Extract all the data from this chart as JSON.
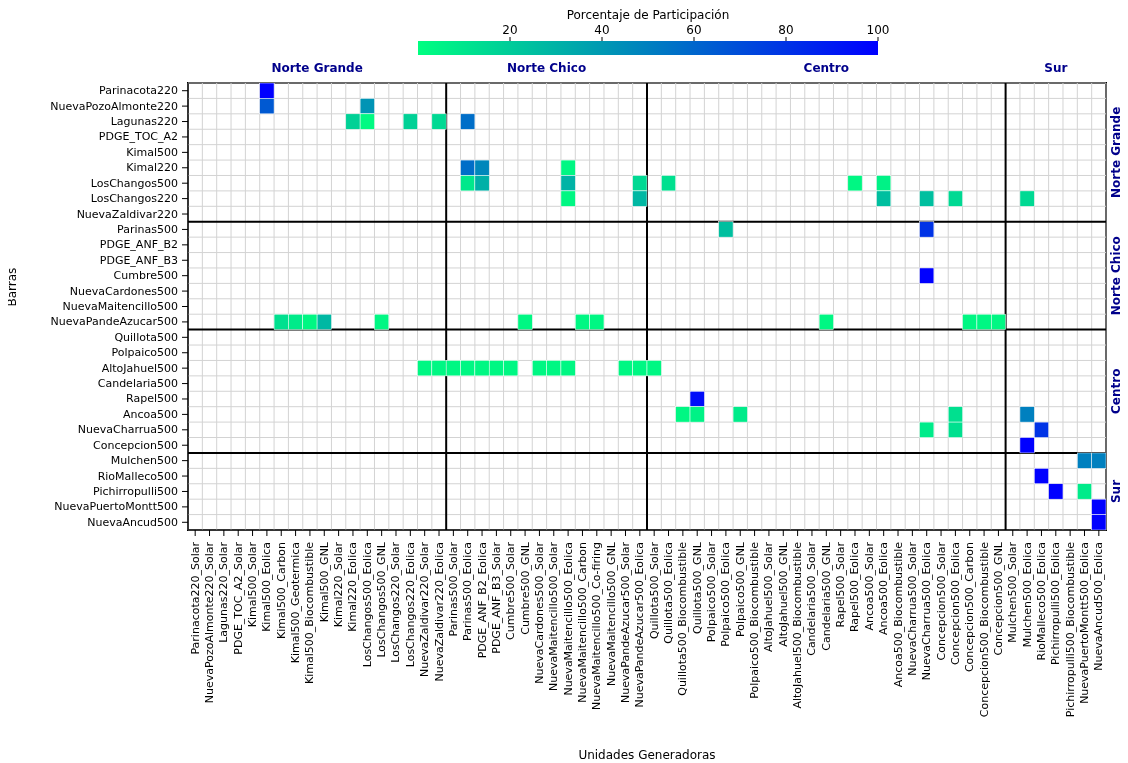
{
  "chart_data": {
    "type": "heatmap",
    "xlabel": "Unidades Generadoras",
    "ylabel": "Barras",
    "clabel": "Porcentaje de Participación",
    "clim": [
      0,
      100
    ],
    "cticks": [
      20,
      40,
      60,
      80,
      100
    ],
    "grid": true,
    "categories": [
      "Parinacota220_Solar",
      "NuevaPozoAlmonte220_Solar",
      "Lagunas220_Solar",
      "PDGE_TOC_A2_Solar",
      "Kimal500_Solar",
      "Kimal500_Eolica",
      "Kimal500_Carbon",
      "Kimal500_Geotermica",
      "Kimal500_Biocombustible",
      "Kimal500_GNL",
      "Kimal220_Solar",
      "Kimal220_Eolica",
      "LosChangos500_Eolica",
      "LosChangos500_GNL",
      "LosChangos220_Solar",
      "LosChangos220_Eolica",
      "NuevaZaldivar220_Solar",
      "NuevaZaldivar220_Eolica",
      "Parinas500_Solar",
      "Parinas500_Eolica",
      "PDGE_ANF_B2_Eolica",
      "PDGE_ANF_B3_Solar",
      "Cumbre500_Solar",
      "Cumbre500_GNL",
      "NuevaCardones500_Solar",
      "NuevaMaitencillo500_Solar",
      "NuevaMaitencillo500_Eolica",
      "NuevaMaitencillo500_Carbon",
      "NuevaMaitencillo500_Co-firing",
      "NuevaMaitencillo500_GNL",
      "NuevaPandeAzucar500_Solar",
      "NuevaPandeAzucar500_Eolica",
      "Quillota500_Solar",
      "Quillota500_Eolica",
      "Quillota500_Biocombustible",
      "Quillota500_GNL",
      "Polpaico500_Solar",
      "Polpaico500_Eolica",
      "Polpaico500_GNL",
      "Polpaico500_Biocombustible",
      "AltoJahuel500_Solar",
      "AltoJahuel500_GNL",
      "AltoJahuel500_Biocombustible",
      "Candelaria500_Solar",
      "Candelaria500_GNL",
      "Rapel500_Solar",
      "Rapel500_Eolica",
      "Ancoa500_Solar",
      "Ancoa500_Eolica",
      "Ancoa500_Biocombustible",
      "NuevaCharrua500_Solar",
      "NuevaCharrua500_Eolica",
      "Concepcion500_Solar",
      "Concepcion500_Eolica",
      "Concepcion500_Carbon",
      "Concepcion500_Biocombustible",
      "Concepcion500_GNL",
      "Mulchen500_Solar",
      "Mulchen500_Eolica",
      "RioMalleco500_Eolica",
      "Pichirropulli500_Eolica",
      "Pichirropulli500_Biocombustible",
      "NuevaPuertoMontt500_Eolica",
      "NuevaAncud500_Eolica"
    ],
    "y_categories": [
      "Parinacota220",
      "NuevaPozoAlmonte220",
      "Lagunas220",
      "PDGE_TOC_A2",
      "Kimal500",
      "Kimal220",
      "LosChangos500",
      "LosChangos220",
      "NuevaZaldivar220",
      "Parinas500",
      "PDGE_ANF_B2",
      "PDGE_ANF_B3",
      "Cumbre500",
      "NuevaCardones500",
      "NuevaMaitencillo500",
      "NuevaPandeAzucar500",
      "Quillota500",
      "Polpaico500",
      "AltoJahuel500",
      "Candelaria500",
      "Rapel500",
      "Ancoa500",
      "NuevaCharrua500",
      "Concepcion500",
      "Mulchen500",
      "RioMalleco500",
      "Pichirropulli500",
      "NuevaPuertoMontt500",
      "NuevaAncud500"
    ],
    "cells": [
      [
        null,
        null,
        null,
        null,
        null,
        100,
        null,
        null,
        null,
        null,
        null,
        null,
        null,
        null,
        null,
        null,
        null,
        null,
        null,
        null,
        null,
        null,
        null,
        null,
        null,
        null,
        null,
        null,
        null,
        null,
        null,
        null,
        null,
        null,
        null,
        null,
        null,
        null,
        null,
        null,
        null,
        null,
        null,
        null,
        null,
        null,
        null,
        null,
        null,
        null,
        null,
        null,
        null,
        null,
        null,
        null,
        null,
        null,
        null,
        null,
        null,
        null,
        null,
        null
      ],
      [
        null,
        null,
        null,
        null,
        null,
        65,
        null,
        null,
        null,
        null,
        null,
        null,
        42,
        null,
        null,
        null,
        null,
        null,
        null,
        null,
        null,
        null,
        null,
        null,
        null,
        null,
        null,
        null,
        null,
        null,
        null,
        null,
        null,
        null,
        null,
        null,
        null,
        null,
        null,
        null,
        null,
        null,
        null,
        null,
        null,
        null,
        null,
        null,
        null,
        null,
        null,
        null,
        null,
        null,
        null,
        null,
        null,
        null,
        null,
        null,
        null,
        null,
        null,
        null
      ],
      [
        null,
        null,
        null,
        null,
        null,
        null,
        null,
        null,
        null,
        null,
        null,
        18,
        2,
        null,
        null,
        18,
        null,
        15,
        null,
        57,
        null,
        null,
        null,
        null,
        null,
        null,
        null,
        null,
        null,
        null,
        null,
        null,
        null,
        null,
        null,
        null,
        null,
        null,
        null,
        null,
        null,
        null,
        null,
        null,
        null,
        null,
        null,
        null,
        null,
        null,
        null,
        null,
        null,
        null,
        null,
        null,
        null,
        null,
        null,
        null,
        null,
        null,
        null,
        null
      ],
      [
        null,
        null,
        null,
        null,
        null,
        null,
        null,
        null,
        null,
        null,
        null,
        null,
        null,
        null,
        null,
        null,
        null,
        null,
        null,
        null,
        null,
        null,
        null,
        null,
        null,
        null,
        null,
        null,
        null,
        null,
        null,
        null,
        null,
        null,
        null,
        null,
        null,
        null,
        null,
        null,
        null,
        null,
        null,
        null,
        null,
        null,
        null,
        null,
        null,
        null,
        null,
        null,
        null,
        null,
        null,
        null,
        null,
        null,
        null,
        null,
        null,
        null,
        null,
        null
      ],
      [
        null,
        null,
        null,
        null,
        null,
        null,
        null,
        null,
        null,
        null,
        null,
        null,
        null,
        null,
        null,
        null,
        null,
        null,
        null,
        null,
        null,
        null,
        null,
        null,
        null,
        null,
        null,
        null,
        null,
        null,
        null,
        null,
        null,
        null,
        null,
        null,
        null,
        null,
        null,
        null,
        null,
        null,
        null,
        null,
        null,
        null,
        null,
        null,
        null,
        null,
        null,
        null,
        null,
        null,
        null,
        null,
        null,
        null,
        null,
        null,
        null,
        null,
        null,
        null
      ],
      [
        null,
        null,
        null,
        null,
        null,
        null,
        null,
        null,
        null,
        null,
        null,
        null,
        null,
        null,
        null,
        null,
        null,
        null,
        null,
        57,
        47,
        null,
        null,
        null,
        null,
        null,
        3,
        null,
        null,
        null,
        null,
        null,
        null,
        null,
        null,
        null,
        null,
        null,
        null,
        null,
        null,
        null,
        null,
        null,
        null,
        null,
        null,
        null,
        null,
        null,
        null,
        null,
        null,
        null,
        null,
        null,
        null,
        null,
        null,
        null,
        null,
        null,
        null,
        null
      ],
      [
        null,
        null,
        null,
        null,
        null,
        null,
        null,
        null,
        null,
        null,
        null,
        null,
        null,
        null,
        null,
        null,
        null,
        null,
        null,
        9,
        31,
        null,
        null,
        null,
        null,
        null,
        30,
        null,
        null,
        null,
        null,
        15,
        null,
        12,
        null,
        null,
        null,
        null,
        null,
        null,
        null,
        null,
        null,
        null,
        null,
        null,
        3,
        null,
        5,
        null,
        null,
        null,
        null,
        null,
        null,
        null,
        null,
        null,
        null,
        null,
        null,
        null,
        null,
        null
      ],
      [
        null,
        null,
        null,
        null,
        null,
        null,
        null,
        null,
        null,
        null,
        null,
        null,
        null,
        null,
        null,
        null,
        null,
        null,
        null,
        null,
        null,
        null,
        null,
        null,
        null,
        null,
        3,
        null,
        null,
        null,
        null,
        28,
        null,
        null,
        null,
        null,
        null,
        null,
        null,
        null,
        null,
        null,
        null,
        null,
        null,
        null,
        null,
        null,
        25,
        null,
        null,
        25,
        null,
        15,
        null,
        null,
        null,
        null,
        15,
        null,
        null,
        null,
        null,
        null
      ],
      [
        null,
        null,
        null,
        null,
        null,
        null,
        null,
        null,
        null,
        null,
        null,
        null,
        null,
        null,
        null,
        null,
        null,
        null,
        null,
        null,
        null,
        null,
        null,
        null,
        null,
        null,
        null,
        null,
        null,
        null,
        null,
        null,
        null,
        null,
        null,
        null,
        null,
        null,
        null,
        null,
        null,
        null,
        null,
        null,
        null,
        null,
        null,
        null,
        null,
        null,
        null,
        null,
        null,
        null,
        null,
        null,
        null,
        null,
        null,
        null,
        null,
        null,
        null,
        null
      ],
      [
        null,
        null,
        null,
        null,
        null,
        null,
        null,
        null,
        null,
        null,
        null,
        null,
        null,
        null,
        null,
        null,
        null,
        null,
        null,
        null,
        null,
        null,
        null,
        null,
        null,
        null,
        null,
        null,
        null,
        null,
        null,
        null,
        null,
        null,
        null,
        null,
        null,
        25,
        null,
        null,
        null,
        null,
        null,
        null,
        null,
        null,
        null,
        null,
        null,
        null,
        null,
        80,
        null,
        null,
        null,
        null,
        null,
        null,
        null,
        null,
        null,
        null,
        null,
        null
      ],
      [
        null,
        null,
        null,
        null,
        null,
        null,
        null,
        null,
        null,
        null,
        null,
        null,
        null,
        null,
        null,
        null,
        null,
        null,
        null,
        null,
        null,
        null,
        null,
        null,
        null,
        null,
        null,
        null,
        null,
        null,
        null,
        null,
        null,
        null,
        null,
        null,
        null,
        null,
        null,
        null,
        null,
        null,
        null,
        null,
        null,
        null,
        null,
        null,
        null,
        null,
        null,
        null,
        null,
        null,
        null,
        null,
        null,
        null,
        null,
        null,
        null,
        null,
        null,
        null
      ],
      [
        null,
        null,
        null,
        null,
        null,
        null,
        null,
        null,
        null,
        null,
        null,
        null,
        null,
        null,
        null,
        null,
        null,
        null,
        null,
        null,
        null,
        null,
        null,
        null,
        null,
        null,
        null,
        null,
        null,
        null,
        null,
        null,
        null,
        null,
        null,
        null,
        null,
        null,
        null,
        null,
        null,
        null,
        null,
        null,
        null,
        null,
        null,
        null,
        null,
        null,
        null,
        null,
        null,
        null,
        null,
        null,
        null,
        null,
        null,
        null,
        null,
        null,
        null,
        null
      ],
      [
        null,
        null,
        null,
        null,
        null,
        null,
        null,
        null,
        null,
        null,
        null,
        null,
        null,
        null,
        null,
        null,
        null,
        null,
        null,
        null,
        null,
        null,
        null,
        null,
        null,
        null,
        null,
        null,
        null,
        null,
        null,
        null,
        null,
        null,
        null,
        null,
        null,
        null,
        null,
        null,
        null,
        null,
        null,
        null,
        null,
        null,
        null,
        null,
        null,
        null,
        null,
        100,
        null,
        null,
        null,
        null,
        null,
        null,
        null,
        null,
        null,
        null,
        null,
        null
      ],
      [
        null,
        null,
        null,
        null,
        null,
        null,
        null,
        null,
        null,
        null,
        null,
        null,
        null,
        null,
        null,
        null,
        null,
        null,
        null,
        null,
        null,
        null,
        null,
        null,
        null,
        null,
        null,
        null,
        null,
        null,
        null,
        null,
        null,
        null,
        null,
        null,
        null,
        null,
        null,
        null,
        null,
        null,
        null,
        null,
        null,
        null,
        null,
        null,
        null,
        null,
        null,
        null,
        null,
        null,
        null,
        null,
        null,
        null,
        null,
        null,
        null,
        null,
        null,
        null
      ],
      [
        null,
        null,
        null,
        null,
        null,
        null,
        null,
        null,
        null,
        null,
        null,
        null,
        null,
        null,
        null,
        null,
        null,
        null,
        null,
        null,
        null,
        null,
        null,
        null,
        null,
        null,
        null,
        null,
        null,
        null,
        null,
        null,
        null,
        null,
        null,
        null,
        null,
        null,
        null,
        null,
        null,
        null,
        null,
        null,
        null,
        null,
        null,
        null,
        null,
        null,
        null,
        null,
        null,
        null,
        null,
        null,
        null,
        null,
        null,
        null,
        null,
        null,
        null,
        null
      ],
      [
        null,
        null,
        null,
        null,
        null,
        null,
        12,
        8,
        3,
        28,
        null,
        null,
        null,
        3,
        null,
        null,
        null,
        null,
        null,
        null,
        null,
        null,
        null,
        3,
        null,
        null,
        null,
        3,
        3,
        null,
        null,
        null,
        null,
        null,
        null,
        null,
        null,
        null,
        null,
        null,
        null,
        null,
        null,
        null,
        3,
        null,
        null,
        null,
        null,
        null,
        null,
        null,
        null,
        null,
        3,
        3,
        3,
        null,
        null,
        null,
        null,
        null,
        null,
        null
      ],
      [
        null,
        null,
        null,
        null,
        null,
        null,
        null,
        null,
        null,
        null,
        null,
        null,
        null,
        null,
        null,
        null,
        null,
        null,
        null,
        null,
        null,
        null,
        null,
        null,
        null,
        null,
        null,
        null,
        null,
        null,
        null,
        null,
        null,
        null,
        null,
        null,
        null,
        null,
        null,
        null,
        null,
        null,
        null,
        null,
        null,
        null,
        null,
        null,
        null,
        null,
        null,
        null,
        null,
        null,
        null,
        null,
        null,
        null,
        null,
        null,
        null,
        null,
        null,
        null
      ],
      [
        null,
        null,
        null,
        null,
        null,
        null,
        null,
        null,
        null,
        null,
        null,
        null,
        null,
        null,
        null,
        null,
        null,
        null,
        null,
        null,
        null,
        null,
        null,
        null,
        null,
        null,
        null,
        null,
        null,
        null,
        null,
        null,
        null,
        null,
        null,
        null,
        null,
        null,
        null,
        null,
        null,
        null,
        null,
        null,
        null,
        null,
        null,
        null,
        null,
        null,
        null,
        null,
        null,
        null,
        null,
        null,
        null,
        null,
        null,
        null,
        null,
        null,
        null,
        null
      ],
      [
        null,
        null,
        null,
        null,
        null,
        null,
        null,
        null,
        null,
        null,
        null,
        null,
        null,
        null,
        null,
        null,
        3,
        3,
        3,
        3,
        3,
        3,
        3,
        null,
        3,
        3,
        3,
        null,
        null,
        null,
        3,
        3,
        3,
        null,
        null,
        null,
        null,
        null,
        null,
        null,
        null,
        null,
        null,
        null,
        null,
        null,
        null,
        null,
        null,
        null,
        null,
        null,
        null,
        null,
        null,
        null,
        null,
        null,
        null,
        null,
        null,
        null,
        null,
        null
      ],
      [
        null,
        null,
        null,
        null,
        null,
        null,
        null,
        null,
        null,
        null,
        null,
        null,
        null,
        null,
        null,
        null,
        null,
        null,
        null,
        null,
        null,
        null,
        null,
        null,
        null,
        null,
        null,
        null,
        null,
        null,
        null,
        null,
        null,
        null,
        null,
        null,
        null,
        null,
        null,
        null,
        null,
        null,
        null,
        null,
        null,
        null,
        null,
        null,
        null,
        null,
        null,
        null,
        null,
        null,
        null,
        null,
        null,
        null,
        null,
        null,
        null,
        null,
        null,
        null
      ],
      [
        null,
        null,
        null,
        null,
        null,
        null,
        null,
        null,
        null,
        null,
        null,
        null,
        null,
        null,
        null,
        null,
        null,
        null,
        null,
        null,
        null,
        null,
        null,
        null,
        null,
        null,
        null,
        null,
        null,
        null,
        null,
        null,
        null,
        null,
        null,
        95,
        null,
        null,
        null,
        null,
        null,
        null,
        null,
        null,
        null,
        null,
        null,
        null,
        null,
        null,
        null,
        null,
        null,
        null,
        null,
        null,
        null,
        null,
        null,
        null,
        null,
        null,
        null,
        null
      ],
      [
        null,
        null,
        null,
        null,
        null,
        null,
        null,
        null,
        null,
        null,
        null,
        null,
        null,
        null,
        null,
        null,
        null,
        null,
        null,
        null,
        null,
        null,
        null,
        null,
        null,
        null,
        null,
        null,
        null,
        null,
        null,
        null,
        null,
        null,
        3,
        5,
        null,
        null,
        8,
        null,
        null,
        null,
        null,
        null,
        null,
        null,
        null,
        null,
        null,
        null,
        null,
        null,
        null,
        12,
        null,
        null,
        null,
        null,
        50,
        null,
        null,
        null,
        null,
        null
      ],
      [
        null,
        null,
        null,
        null,
        null,
        null,
        null,
        null,
        null,
        null,
        null,
        null,
        null,
        null,
        null,
        null,
        null,
        null,
        null,
        null,
        null,
        null,
        null,
        null,
        null,
        null,
        null,
        null,
        null,
        null,
        null,
        null,
        null,
        null,
        null,
        null,
        null,
        null,
        null,
        null,
        null,
        null,
        null,
        null,
        null,
        null,
        null,
        null,
        null,
        null,
        null,
        8,
        null,
        12,
        null,
        null,
        null,
        null,
        null,
        80,
        null,
        null,
        null,
        null
      ],
      [
        null,
        null,
        null,
        null,
        null,
        null,
        null,
        null,
        null,
        null,
        null,
        null,
        null,
        null,
        null,
        null,
        null,
        null,
        null,
        null,
        null,
        null,
        null,
        null,
        null,
        null,
        null,
        null,
        null,
        null,
        null,
        null,
        null,
        null,
        null,
        null,
        null,
        null,
        null,
        null,
        null,
        null,
        null,
        null,
        null,
        null,
        null,
        null,
        null,
        null,
        null,
        null,
        null,
        null,
        null,
        null,
        null,
        null,
        100,
        null,
        null,
        null,
        null,
        null
      ],
      [
        null,
        null,
        null,
        null,
        null,
        null,
        null,
        null,
        null,
        null,
        null,
        null,
        null,
        null,
        null,
        null,
        null,
        null,
        null,
        null,
        null,
        null,
        null,
        null,
        null,
        null,
        null,
        null,
        null,
        null,
        null,
        null,
        null,
        null,
        null,
        null,
        null,
        null,
        null,
        null,
        null,
        null,
        null,
        null,
        null,
        null,
        null,
        null,
        null,
        null,
        null,
        null,
        null,
        null,
        null,
        null,
        null,
        null,
        null,
        null,
        null,
        null,
        50,
        50
      ],
      [
        null,
        null,
        null,
        null,
        null,
        null,
        null,
        null,
        null,
        null,
        null,
        null,
        null,
        null,
        null,
        null,
        null,
        null,
        null,
        null,
        null,
        null,
        null,
        null,
        null,
        null,
        null,
        null,
        null,
        null,
        null,
        null,
        null,
        null,
        null,
        null,
        null,
        null,
        null,
        null,
        null,
        null,
        null,
        null,
        null,
        null,
        null,
        null,
        null,
        null,
        null,
        null,
        null,
        null,
        null,
        null,
        null,
        null,
        null,
        100,
        null,
        null,
        null,
        null
      ],
      [
        null,
        null,
        null,
        null,
        null,
        null,
        null,
        null,
        null,
        null,
        null,
        null,
        null,
        null,
        null,
        null,
        null,
        null,
        null,
        null,
        null,
        null,
        null,
        null,
        null,
        null,
        null,
        null,
        null,
        null,
        null,
        null,
        null,
        null,
        null,
        null,
        null,
        null,
        null,
        null,
        null,
        null,
        null,
        null,
        null,
        null,
        null,
        null,
        null,
        null,
        null,
        null,
        null,
        null,
        null,
        null,
        null,
        null,
        null,
        null,
        100,
        null,
        8,
        null
      ],
      [
        null,
        null,
        null,
        null,
        null,
        null,
        null,
        null,
        null,
        null,
        null,
        null,
        null,
        null,
        null,
        null,
        null,
        null,
        null,
        null,
        null,
        null,
        null,
        null,
        null,
        null,
        null,
        null,
        null,
        null,
        null,
        null,
        null,
        null,
        null,
        null,
        null,
        null,
        null,
        null,
        null,
        null,
        null,
        null,
        null,
        null,
        null,
        null,
        null,
        null,
        null,
        null,
        null,
        null,
        null,
        null,
        null,
        null,
        null,
        null,
        null,
        null,
        null,
        100
      ],
      [
        null,
        null,
        null,
        null,
        null,
        null,
        null,
        null,
        null,
        null,
        null,
        null,
        null,
        null,
        null,
        null,
        null,
        null,
        null,
        null,
        null,
        null,
        null,
        null,
        null,
        null,
        null,
        null,
        null,
        null,
        null,
        null,
        null,
        null,
        null,
        null,
        null,
        null,
        null,
        null,
        null,
        null,
        null,
        null,
        null,
        null,
        null,
        null,
        null,
        null,
        null,
        null,
        null,
        null,
        null,
        null,
        null,
        null,
        null,
        null,
        null,
        null,
        null,
        100
      ]
    ],
    "annotations": [
      "Norte Grande",
      "Norte Chico",
      "Centro",
      "Sur",
      "Norte Grande",
      "Norte Chico",
      "Centro",
      "Sur"
    ]
  }
}
